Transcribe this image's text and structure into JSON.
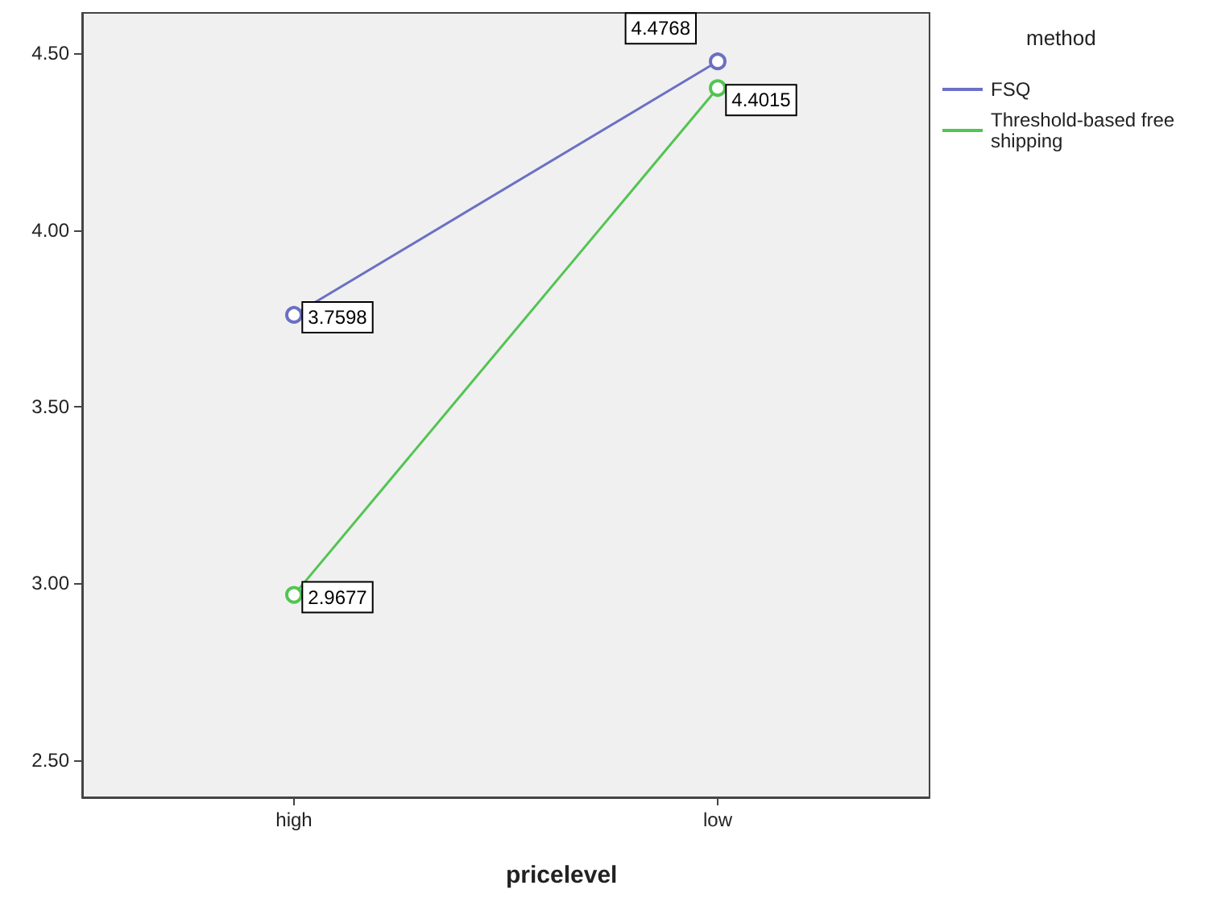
{
  "chart_data": {
    "type": "line",
    "xlabel": "pricelevel",
    "legend_title": "method",
    "categories": [
      "high",
      "low"
    ],
    "series": [
      {
        "name": "FSQ",
        "color": "#6b70c4",
        "values": [
          3.7598,
          4.4768
        ]
      },
      {
        "name": "Threshold-based free shipping",
        "color": "#52c452",
        "values": [
          2.9677,
          4.4015
        ]
      }
    ],
    "ylim": [
      2.395,
      4.614
    ],
    "yticks": [
      {
        "value": 2.5,
        "label": "2.50"
      },
      {
        "value": 3,
        "label": "3.00"
      },
      {
        "value": 3.5,
        "label": "3.50"
      },
      {
        "value": 4,
        "label": "4.00"
      },
      {
        "value": 4.5,
        "label": "4.50"
      }
    ],
    "grid": false,
    "legend": "top right",
    "marker": "circle",
    "line_style": "solid",
    "data_labels": true
  }
}
